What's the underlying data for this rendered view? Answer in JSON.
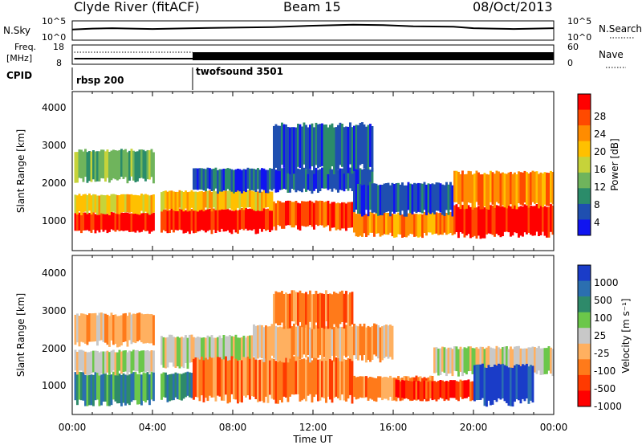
{
  "header": {
    "station": "Clyde River (fitACF)",
    "beam": "Beam 15",
    "date": "08/Oct/2013"
  },
  "left_labels": {
    "nsky": "N.Sky",
    "freq1": "Freq.",
    "freq2": "[MHz]",
    "cpid": "CPID"
  },
  "right_labels": {
    "nsearch": "N.Search",
    "nave": "Nave"
  },
  "cpid_segments": [
    "rbsp 200",
    "twofsound 3501"
  ],
  "ticks": {
    "noise_left": [
      "10^5",
      "10^0"
    ],
    "noise_right": [
      "10^5",
      "10^0"
    ],
    "freq_left": [
      "18",
      "8"
    ],
    "freq_right": [
      "60",
      "0"
    ],
    "range": [
      "1000",
      "2000",
      "3000",
      "4000"
    ],
    "time": [
      "00:00",
      "04:00",
      "08:00",
      "12:00",
      "16:00",
      "20:00",
      "00:00"
    ]
  },
  "axis_labels": {
    "y_range": "Slant Range [km]",
    "x_time": "Time UT"
  },
  "power_scale": {
    "label": "Power [dB]",
    "ticks": [
      "28",
      "24",
      "20",
      "16",
      "12",
      "8",
      "4"
    ],
    "colors": [
      "#ff0000",
      "#ff4a00",
      "#ff8c00",
      "#ffc000",
      "#c6d33a",
      "#6fb45c",
      "#2b8c6a",
      "#1f4fb0",
      "#1014f0"
    ]
  },
  "velocity_scale": {
    "label": "Velocity [m s⁻¹]",
    "ticks": [
      "1000",
      "500",
      "100",
      "25",
      "-25",
      "-100",
      "-500",
      "-1000"
    ],
    "colors": [
      "#1a3cc8",
      "#2b6fb0",
      "#2e8a6a",
      "#6bc74a",
      "#c8c8c8",
      "#ffb060",
      "#ff7a1a",
      "#ff3a00",
      "#ff0000"
    ]
  },
  "chart_data": [
    {
      "type": "line",
      "name": "noise",
      "x_hours": [
        0,
        1,
        2,
        3,
        4,
        5,
        6,
        8,
        10,
        12,
        14,
        15.5,
        17,
        19,
        20,
        21,
        22,
        24
      ],
      "y_sky_norm": [
        0.55,
        0.6,
        0.62,
        0.6,
        0.58,
        0.6,
        0.62,
        0.65,
        0.68,
        0.75,
        0.8,
        0.78,
        0.72,
        0.7,
        0.62,
        0.6,
        0.58,
        0.62
      ]
    },
    {
      "type": "heatmap",
      "name": "power",
      "x_range_hours": [
        0,
        24
      ],
      "y_range_km": [
        180,
        4500
      ],
      "bands": [
        {
          "t0": 0.1,
          "t1": 4.1,
          "r0": 700,
          "r1": 1200,
          "level": 0
        },
        {
          "t0": 0.1,
          "t1": 4.1,
          "r0": 1200,
          "r1": 1700,
          "level": 3
        },
        {
          "t0": 0.1,
          "t1": 4.1,
          "r0": 2100,
          "r1": 2900,
          "level": 5
        },
        {
          "t0": 4.4,
          "t1": 10,
          "r0": 700,
          "r1": 1300,
          "level": 0
        },
        {
          "t0": 4.4,
          "t1": 10,
          "r0": 1300,
          "r1": 1800,
          "level": 3
        },
        {
          "t0": 6.0,
          "t1": 15,
          "r0": 1800,
          "r1": 2400,
          "level": 7
        },
        {
          "t0": 10,
          "t1": 14,
          "r0": 800,
          "r1": 1500,
          "level": 1
        },
        {
          "t0": 10,
          "t1": 15,
          "r0": 2400,
          "r1": 3600,
          "level": 7
        },
        {
          "t0": 14,
          "t1": 19,
          "r0": 600,
          "r1": 1200,
          "level": 2
        },
        {
          "t0": 14,
          "t1": 19,
          "r0": 1200,
          "r1": 2000,
          "level": 7
        },
        {
          "t0": 19,
          "t1": 24,
          "r0": 600,
          "r1": 1400,
          "level": 0
        },
        {
          "t0": 19,
          "t1": 24,
          "r0": 1400,
          "r1": 2300,
          "level": 2
        }
      ]
    },
    {
      "type": "heatmap",
      "name": "velocity",
      "x_range_hours": [
        0,
        24
      ],
      "y_range_km": [
        180,
        4500
      ],
      "bands": [
        {
          "t0": 0.1,
          "t1": 4.1,
          "r0": 500,
          "r1": 1300,
          "level": 2
        },
        {
          "t0": 0.1,
          "t1": 4.1,
          "r0": 1300,
          "r1": 1900,
          "level": 4
        },
        {
          "t0": 0.1,
          "t1": 4.1,
          "r0": 2100,
          "r1": 2900,
          "level": 5
        },
        {
          "t0": 4.4,
          "t1": 6,
          "r0": 600,
          "r1": 1300,
          "level": 2
        },
        {
          "t0": 4.4,
          "t1": 9,
          "r0": 1500,
          "r1": 2300,
          "level": 4
        },
        {
          "t0": 6,
          "t1": 14,
          "r0": 600,
          "r1": 1700,
          "level": 6
        },
        {
          "t0": 9,
          "t1": 16,
          "r0": 1700,
          "r1": 2600,
          "level": 5
        },
        {
          "t0": 10,
          "t1": 14,
          "r0": 2600,
          "r1": 3500,
          "level": 6
        },
        {
          "t0": 14,
          "t1": 18,
          "r0": 600,
          "r1": 1200,
          "level": 6
        },
        {
          "t0": 16,
          "t1": 20,
          "r0": 600,
          "r1": 1100,
          "level": 7
        },
        {
          "t0": 18,
          "t1": 24,
          "r0": 1300,
          "r1": 2000,
          "level": 4
        },
        {
          "t0": 20,
          "t1": 23,
          "r0": 500,
          "r1": 1500,
          "level": 0
        }
      ]
    }
  ]
}
